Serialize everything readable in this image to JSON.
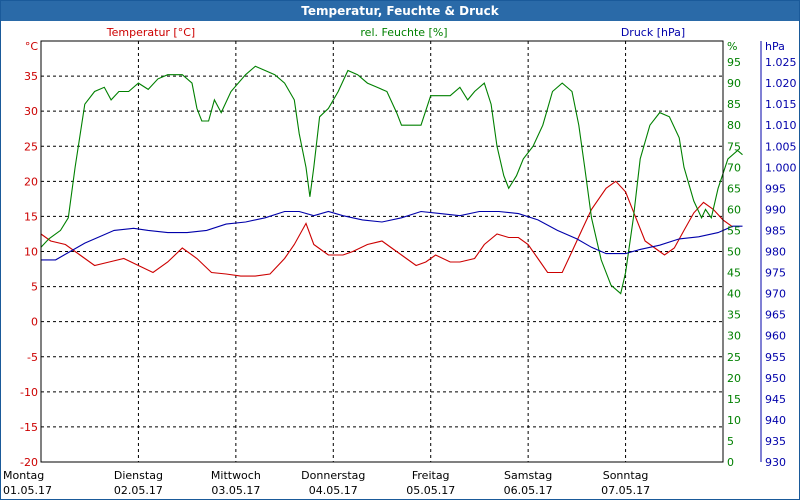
{
  "window": {
    "title": "Temperatur, Feuchte & Druck"
  },
  "colors": {
    "temp": "#cc0000",
    "hum": "#008000",
    "press": "#0000aa",
    "grid": "#000000",
    "text": "#000000",
    "titlebar": "#2a6aa8"
  },
  "chart_data": {
    "type": "line",
    "legend": {
      "temp": "Temperatur [°C]",
      "hum": "rel. Feuchte [%]",
      "press": "Druck [hPa]"
    },
    "axes": {
      "temp": {
        "unit": "°C",
        "range": [
          -20,
          40
        ],
        "ticks": [
          "35",
          "30",
          "25",
          "20",
          "15",
          "10",
          "5",
          "0",
          "-5",
          "-10",
          "-15",
          "-20"
        ]
      },
      "hum": {
        "unit": "%",
        "range": [
          0,
          100
        ],
        "ticks": [
          "95",
          "90",
          "85",
          "80",
          "75",
          "70",
          "65",
          "60",
          "55",
          "50",
          "45",
          "40",
          "35",
          "30",
          "25",
          "20",
          "15",
          "10",
          "5",
          "0"
        ]
      },
      "press": {
        "unit": "hPa",
        "range": [
          930,
          1030
        ],
        "ticks": [
          "1.025",
          "1.020",
          "1.015",
          "1.010",
          "1.005",
          "1.000",
          "995",
          "990",
          "985",
          "980",
          "975",
          "970",
          "965",
          "960",
          "955",
          "950",
          "945",
          "940",
          "935",
          "930"
        ]
      }
    },
    "x_range": [
      0,
      7
    ],
    "x_labels": [
      {
        "day": "Montag",
        "date": "01.05.17"
      },
      {
        "day": "Dienstag",
        "date": "02.05.17"
      },
      {
        "day": "Mittwoch",
        "date": "03.05.17"
      },
      {
        "day": "Donnerstag",
        "date": "04.05.17"
      },
      {
        "day": "Freitag",
        "date": "05.05.17"
      },
      {
        "day": "Samstag",
        "date": "06.05.17"
      },
      {
        "day": "Sonntag",
        "date": "07.05.17"
      }
    ],
    "grid": true,
    "series": [
      {
        "key": "temp",
        "points": [
          [
            0.0,
            12.5
          ],
          [
            0.1,
            11.5
          ],
          [
            0.25,
            11.0
          ],
          [
            0.4,
            9.5
          ],
          [
            0.55,
            8.0
          ],
          [
            0.7,
            8.5
          ],
          [
            0.85,
            9.0
          ],
          [
            1.0,
            8.0
          ],
          [
            1.15,
            7.0
          ],
          [
            1.3,
            8.5
          ],
          [
            1.45,
            10.5
          ],
          [
            1.6,
            9.0
          ],
          [
            1.75,
            7.0
          ],
          [
            1.9,
            6.8
          ],
          [
            2.05,
            6.5
          ],
          [
            2.2,
            6.5
          ],
          [
            2.35,
            6.8
          ],
          [
            2.5,
            9.0
          ],
          [
            2.6,
            11.0
          ],
          [
            2.72,
            14.0
          ],
          [
            2.8,
            11.0
          ],
          [
            2.95,
            9.5
          ],
          [
            3.1,
            9.5
          ],
          [
            3.2,
            10.0
          ],
          [
            3.35,
            11.0
          ],
          [
            3.5,
            11.5
          ],
          [
            3.6,
            10.5
          ],
          [
            3.7,
            9.5
          ],
          [
            3.85,
            8.0
          ],
          [
            3.95,
            8.5
          ],
          [
            4.05,
            9.5
          ],
          [
            4.2,
            8.5
          ],
          [
            4.3,
            8.5
          ],
          [
            4.45,
            9.0
          ],
          [
            4.55,
            11.0
          ],
          [
            4.68,
            12.5
          ],
          [
            4.8,
            12.0
          ],
          [
            4.9,
            12.0
          ],
          [
            5.0,
            11.0
          ],
          [
            5.1,
            9.0
          ],
          [
            5.2,
            7.0
          ],
          [
            5.35,
            7.0
          ],
          [
            5.45,
            10.0
          ],
          [
            5.55,
            13.0
          ],
          [
            5.65,
            16.0
          ],
          [
            5.8,
            19.0
          ],
          [
            5.9,
            20.0
          ],
          [
            6.0,
            18.5
          ],
          [
            6.1,
            15.0
          ],
          [
            6.2,
            11.5
          ],
          [
            6.3,
            10.5
          ],
          [
            6.4,
            9.5
          ],
          [
            6.5,
            10.5
          ],
          [
            6.6,
            13.0
          ],
          [
            6.7,
            15.5
          ],
          [
            6.8,
            17.0
          ],
          [
            6.9,
            16.0
          ],
          [
            7.0,
            14.5
          ],
          [
            7.1,
            13.5
          ]
        ]
      },
      {
        "key": "hum",
        "points": [
          [
            0.0,
            51.0
          ],
          [
            0.08,
            53.0
          ],
          [
            0.2,
            55.0
          ],
          [
            0.28,
            58.0
          ],
          [
            0.35,
            70.0
          ],
          [
            0.45,
            85.0
          ],
          [
            0.55,
            88.0
          ],
          [
            0.65,
            89.0
          ],
          [
            0.72,
            86.0
          ],
          [
            0.8,
            88.0
          ],
          [
            0.9,
            88.0
          ],
          [
            1.0,
            90.0
          ],
          [
            1.1,
            88.5
          ],
          [
            1.2,
            91.0
          ],
          [
            1.3,
            92.0
          ],
          [
            1.45,
            92.0
          ],
          [
            1.55,
            90.0
          ],
          [
            1.6,
            84.0
          ],
          [
            1.65,
            81.0
          ],
          [
            1.72,
            81.0
          ],
          [
            1.78,
            86.0
          ],
          [
            1.85,
            83.0
          ],
          [
            1.95,
            88.0
          ],
          [
            2.1,
            92.0
          ],
          [
            2.2,
            94.0
          ],
          [
            2.3,
            93.0
          ],
          [
            2.4,
            92.0
          ],
          [
            2.5,
            90.0
          ],
          [
            2.6,
            86.0
          ],
          [
            2.65,
            78.0
          ],
          [
            2.72,
            70.0
          ],
          [
            2.76,
            63.0
          ],
          [
            2.8,
            70.0
          ],
          [
            2.86,
            82.0
          ],
          [
            2.95,
            84.0
          ],
          [
            3.05,
            88.0
          ],
          [
            3.15,
            93.0
          ],
          [
            3.25,
            92.0
          ],
          [
            3.35,
            90.0
          ],
          [
            3.45,
            89.0
          ],
          [
            3.55,
            88.0
          ],
          [
            3.65,
            83.0
          ],
          [
            3.7,
            80.0
          ],
          [
            3.8,
            80.0
          ],
          [
            3.9,
            80.0
          ],
          [
            4.0,
            87.0
          ],
          [
            4.1,
            87.0
          ],
          [
            4.2,
            87.0
          ],
          [
            4.3,
            89.0
          ],
          [
            4.38,
            86.0
          ],
          [
            4.45,
            88.0
          ],
          [
            4.55,
            90.0
          ],
          [
            4.62,
            85.0
          ],
          [
            4.68,
            75.0
          ],
          [
            4.75,
            68.0
          ],
          [
            4.8,
            65.0
          ],
          [
            4.88,
            68.0
          ],
          [
            4.95,
            72.0
          ],
          [
            5.05,
            75.0
          ],
          [
            5.15,
            80.0
          ],
          [
            5.25,
            88.0
          ],
          [
            5.35,
            90.0
          ],
          [
            5.45,
            88.0
          ],
          [
            5.52,
            80.0
          ],
          [
            5.58,
            70.0
          ],
          [
            5.65,
            58.0
          ],
          [
            5.75,
            48.0
          ],
          [
            5.85,
            42.0
          ],
          [
            5.95,
            40.0
          ],
          [
            6.0,
            45.0
          ],
          [
            6.08,
            58.0
          ],
          [
            6.15,
            72.0
          ],
          [
            6.25,
            80.0
          ],
          [
            6.35,
            83.0
          ],
          [
            6.45,
            82.0
          ],
          [
            6.55,
            77.0
          ],
          [
            6.6,
            70.0
          ],
          [
            6.7,
            62.0
          ],
          [
            6.78,
            58.0
          ],
          [
            6.82,
            60.0
          ],
          [
            6.88,
            58.0
          ],
          [
            6.95,
            65.0
          ],
          [
            7.05,
            72.0
          ],
          [
            7.15,
            74.0
          ],
          [
            7.2,
            73.0
          ]
        ]
      },
      {
        "key": "press",
        "points": [
          [
            0.0,
            978.0
          ],
          [
            0.15,
            978.0
          ],
          [
            0.3,
            980.0
          ],
          [
            0.45,
            982.0
          ],
          [
            0.6,
            983.5
          ],
          [
            0.75,
            985.0
          ],
          [
            0.95,
            985.5
          ],
          [
            1.1,
            985.0
          ],
          [
            1.3,
            984.5
          ],
          [
            1.5,
            984.5
          ],
          [
            1.7,
            985.0
          ],
          [
            1.9,
            986.5
          ],
          [
            2.1,
            987.0
          ],
          [
            2.3,
            988.0
          ],
          [
            2.5,
            989.5
          ],
          [
            2.65,
            989.5
          ],
          [
            2.8,
            988.5
          ],
          [
            2.95,
            989.5
          ],
          [
            3.1,
            988.5
          ],
          [
            3.3,
            987.5
          ],
          [
            3.5,
            987.0
          ],
          [
            3.7,
            988.0
          ],
          [
            3.9,
            989.5
          ],
          [
            4.1,
            989.0
          ],
          [
            4.3,
            988.5
          ],
          [
            4.5,
            989.5
          ],
          [
            4.7,
            989.5
          ],
          [
            4.9,
            989.0
          ],
          [
            5.1,
            987.5
          ],
          [
            5.3,
            985.0
          ],
          [
            5.5,
            983.0
          ],
          [
            5.65,
            981.0
          ],
          [
            5.8,
            979.5
          ],
          [
            6.0,
            979.5
          ],
          [
            6.15,
            980.5
          ],
          [
            6.35,
            981.5
          ],
          [
            6.55,
            983.0
          ],
          [
            6.75,
            983.5
          ],
          [
            6.95,
            984.5
          ],
          [
            7.1,
            986.0
          ],
          [
            7.2,
            986.0
          ]
        ]
      }
    ]
  }
}
